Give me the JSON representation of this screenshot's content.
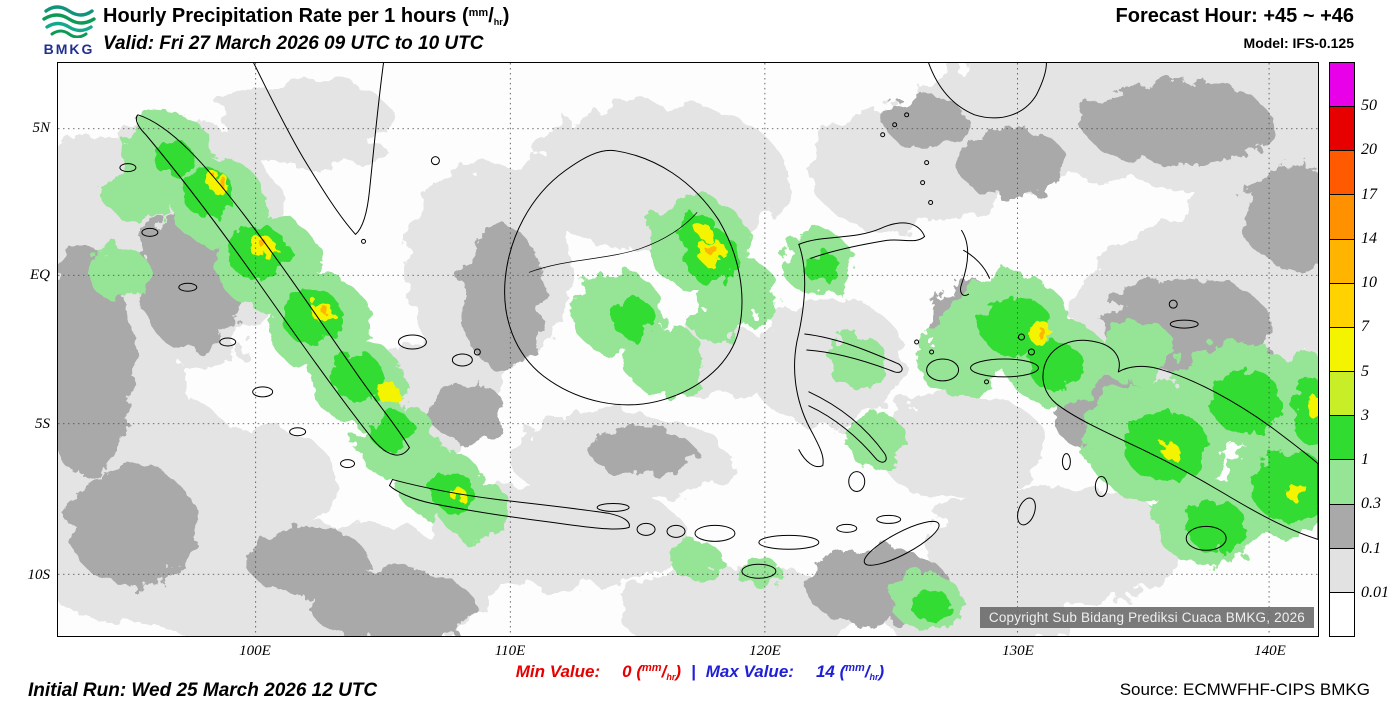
{
  "header": {
    "logo": "BMKG",
    "title": "Hourly Precipitation Rate per 1 hours ",
    "valid": "Valid: Fri 27 March 2026 09 UTC to 10 UTC",
    "forecast_hour": "Forecast Hour: +45 ~ +46",
    "model": "Model: IFS-0.125"
  },
  "unit": {
    "open": "(",
    "num": "mm",
    "slash": "/",
    "den": "hr",
    "close": ")"
  },
  "map": {
    "lat_labels": [
      "5N",
      "EQ",
      "5S",
      "10S"
    ],
    "lon_labels": [
      "100E",
      "110E",
      "120E",
      "130E",
      "140E"
    ],
    "copyright": "Copyright Sub Bidang Prediksi Cuaca BMKG, 2026"
  },
  "legend": {
    "labels": [
      "50",
      "20",
      "17",
      "14",
      "10",
      "7",
      "5",
      "3",
      "1",
      "0.3",
      "0.1",
      "0.01"
    ],
    "colors": [
      "#e800e8",
      "#e60000",
      "#ff5a00",
      "#ff9000",
      "#ffb400",
      "#ffd200",
      "#f4f400",
      "#c8ee28",
      "#30dc30",
      "#96e496",
      "#a9a9a9",
      "#e2e2e2",
      "#ffffff"
    ]
  },
  "footer": {
    "initial_run": "Initial Run: Wed 25 March 2026 12 UTC",
    "min_label": "Min Value:",
    "min_value": "0 ",
    "separator": "|",
    "max_label": "Max Value:",
    "max_value": "14 ",
    "source": "Source: ECMWFHF-CIPS BMKG"
  }
}
